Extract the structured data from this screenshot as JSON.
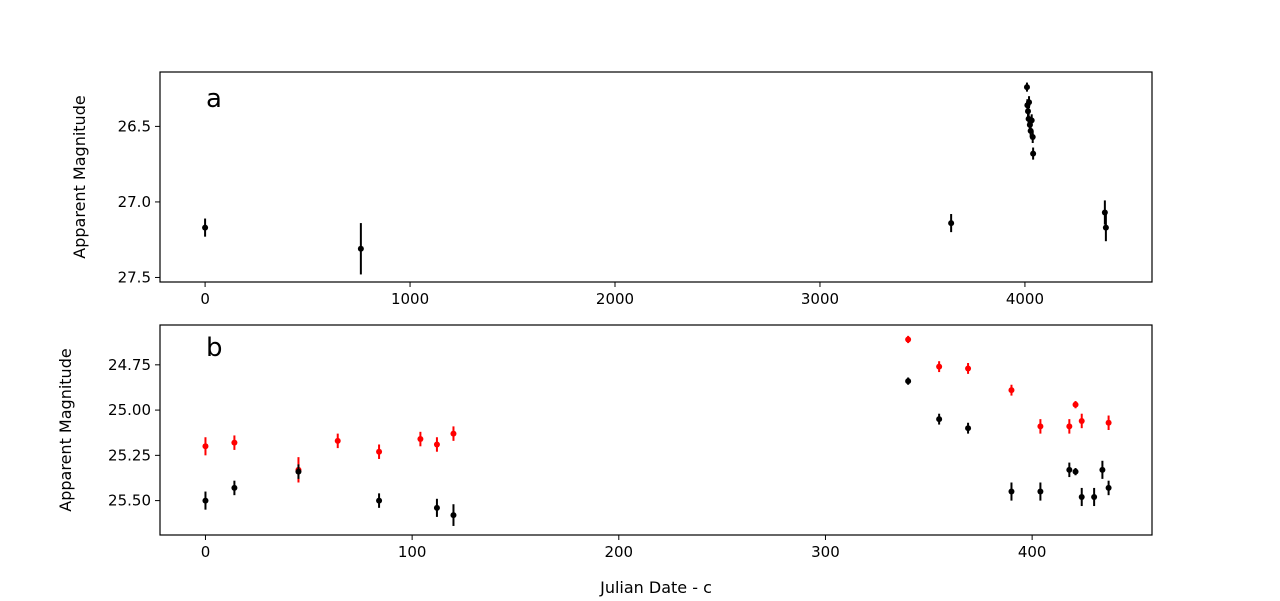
{
  "chart_data": [
    {
      "type": "scatter",
      "panel_label": "a",
      "title": "",
      "xlabel": "",
      "ylabel": "Apparent Magnitude",
      "xlim": [
        -220,
        4620
      ],
      "ylim": [
        27.53,
        26.14
      ],
      "y_inverted": true,
      "grid": false,
      "xticks": [
        0,
        1000,
        2000,
        3000,
        4000
      ],
      "yticks": [
        26.5,
        27.0,
        27.5
      ],
      "ytick_labels": [
        "26.5",
        "27.0",
        "27.5"
      ],
      "series": [
        {
          "color": "#000000",
          "points": [
            {
              "x": 0,
              "y": 27.17,
              "err": 0.06
            },
            {
              "x": 760,
              "y": 27.31,
              "err": 0.17
            },
            {
              "x": 3640,
              "y": 27.14,
              "err": 0.06
            },
            {
              "x": 4010,
              "y": 26.24,
              "err": 0.03
            },
            {
              "x": 4012,
              "y": 26.36,
              "err": 0.04
            },
            {
              "x": 4015,
              "y": 26.4,
              "err": 0.04
            },
            {
              "x": 4018,
              "y": 26.45,
              "err": 0.04
            },
            {
              "x": 4020,
              "y": 26.34,
              "err": 0.04
            },
            {
              "x": 4024,
              "y": 26.49,
              "err": 0.04
            },
            {
              "x": 4028,
              "y": 26.53,
              "err": 0.04
            },
            {
              "x": 4033,
              "y": 26.46,
              "err": 0.04
            },
            {
              "x": 4038,
              "y": 26.57,
              "err": 0.04
            },
            {
              "x": 4040,
              "y": 26.68,
              "err": 0.04
            },
            {
              "x": 4390,
              "y": 27.07,
              "err": 0.08
            },
            {
              "x": 4395,
              "y": 27.17,
              "err": 0.09
            }
          ]
        }
      ]
    },
    {
      "type": "scatter",
      "panel_label": "b",
      "title": "",
      "xlabel": "Julian Date - c",
      "ylabel": "Apparent Magnitude",
      "xlim": [
        -22,
        458
      ],
      "ylim": [
        25.69,
        24.53
      ],
      "y_inverted": true,
      "grid": false,
      "xticks": [
        0,
        100,
        200,
        300,
        400
      ],
      "yticks": [
        24.75,
        25.0,
        25.25,
        25.5
      ],
      "ytick_labels": [
        "24.75",
        "25.00",
        "25.25",
        "25.50"
      ],
      "series": [
        {
          "color": "#ff0000",
          "points": [
            {
              "x": 0,
              "y": 25.2,
              "err": 0.05
            },
            {
              "x": 14,
              "y": 25.18,
              "err": 0.04
            },
            {
              "x": 45,
              "y": 25.33,
              "err": 0.07
            },
            {
              "x": 64,
              "y": 25.17,
              "err": 0.04
            },
            {
              "x": 84,
              "y": 25.23,
              "err": 0.04
            },
            {
              "x": 104,
              "y": 25.16,
              "err": 0.04
            },
            {
              "x": 112,
              "y": 25.19,
              "err": 0.04
            },
            {
              "x": 120,
              "y": 25.13,
              "err": 0.04
            },
            {
              "x": 340,
              "y": 24.61,
              "err": 0.02
            },
            {
              "x": 355,
              "y": 24.76,
              "err": 0.03
            },
            {
              "x": 369,
              "y": 24.77,
              "err": 0.03
            },
            {
              "x": 390,
              "y": 24.89,
              "err": 0.03
            },
            {
              "x": 404,
              "y": 25.09,
              "err": 0.04
            },
            {
              "x": 418,
              "y": 25.09,
              "err": 0.04
            },
            {
              "x": 421,
              "y": 24.97,
              "err": 0.02
            },
            {
              "x": 424,
              "y": 25.06,
              "err": 0.04
            },
            {
              "x": 437,
              "y": 25.07,
              "err": 0.04
            }
          ]
        },
        {
          "color": "#000000",
          "points": [
            {
              "x": 0,
              "y": 25.5,
              "err": 0.05
            },
            {
              "x": 14,
              "y": 25.43,
              "err": 0.04
            },
            {
              "x": 45,
              "y": 25.34,
              "err": 0.04
            },
            {
              "x": 84,
              "y": 25.5,
              "err": 0.04
            },
            {
              "x": 112,
              "y": 25.54,
              "err": 0.05
            },
            {
              "x": 120,
              "y": 25.58,
              "err": 0.06
            },
            {
              "x": 340,
              "y": 24.84,
              "err": 0.02
            },
            {
              "x": 355,
              "y": 25.05,
              "err": 0.03
            },
            {
              "x": 369,
              "y": 25.1,
              "err": 0.03
            },
            {
              "x": 390,
              "y": 25.45,
              "err": 0.05
            },
            {
              "x": 404,
              "y": 25.45,
              "err": 0.05
            },
            {
              "x": 418,
              "y": 25.33,
              "err": 0.04
            },
            {
              "x": 421,
              "y": 25.34,
              "err": 0.02
            },
            {
              "x": 424,
              "y": 25.48,
              "err": 0.05
            },
            {
              "x": 430,
              "y": 25.48,
              "err": 0.05
            },
            {
              "x": 434,
              "y": 25.33,
              "err": 0.05
            },
            {
              "x": 437,
              "y": 25.43,
              "err": 0.04
            }
          ]
        }
      ]
    }
  ]
}
